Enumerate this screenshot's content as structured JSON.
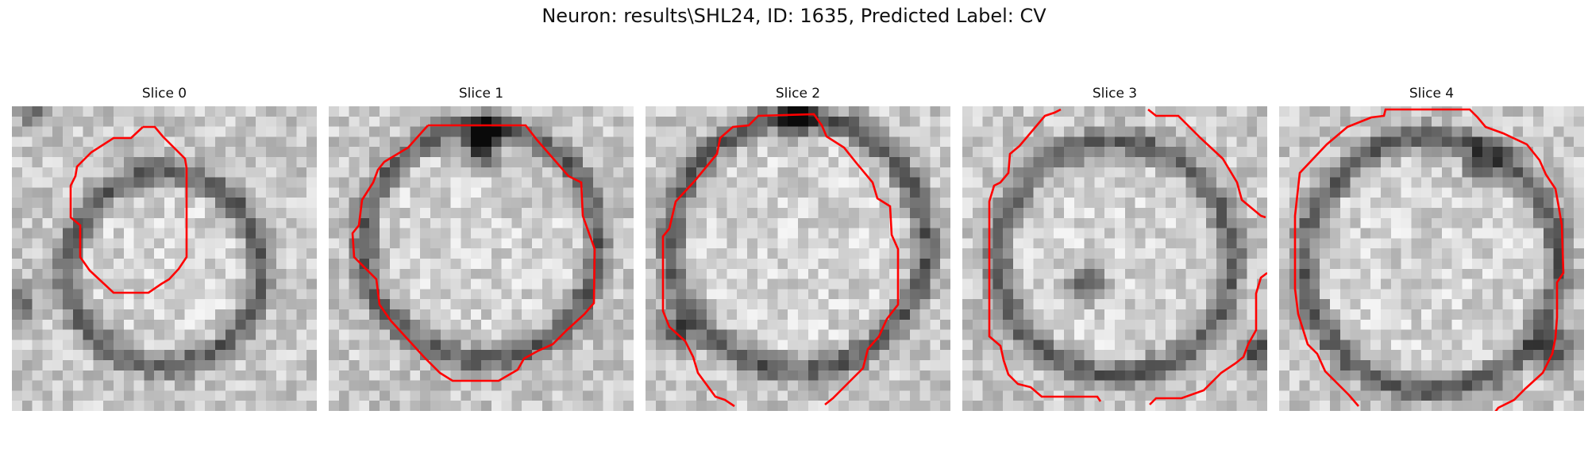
{
  "figure": {
    "title": "Neuron: results\\SHL24, ID: 1635, Predicted Label: CV"
  },
  "panels": [
    {
      "title": "Slice 0"
    },
    {
      "title": "Slice 1"
    },
    {
      "title": "Slice 2"
    },
    {
      "title": "Slice 3"
    },
    {
      "title": "Slice 4"
    }
  ],
  "colors": {
    "contour": "#ff0000",
    "background": "#ffffff"
  }
}
